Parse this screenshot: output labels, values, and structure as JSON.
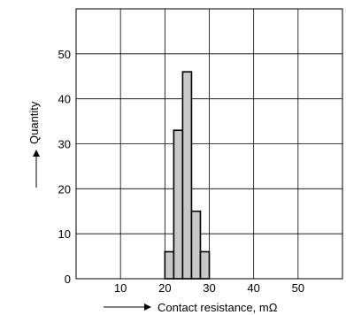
{
  "chart_data": {
    "type": "bar",
    "title": "",
    "xlabel": "Contact resistance, mΩ",
    "ylabel": "Quantity",
    "xlim": [
      0,
      60
    ],
    "ylim": [
      0,
      60
    ],
    "xticks": [
      10,
      20,
      30,
      40,
      50
    ],
    "yticks": [
      0,
      10,
      20,
      30,
      40,
      50
    ],
    "grid": true,
    "bar_color": "#c8c8c8",
    "bins": [
      {
        "x0": 20,
        "x1": 22,
        "value": 6
      },
      {
        "x0": 22,
        "x1": 24,
        "value": 33
      },
      {
        "x0": 24,
        "x1": 26,
        "value": 46
      },
      {
        "x0": 26,
        "x1": 28,
        "value": 15
      },
      {
        "x0": 28,
        "x1": 30,
        "value": 6
      }
    ]
  }
}
